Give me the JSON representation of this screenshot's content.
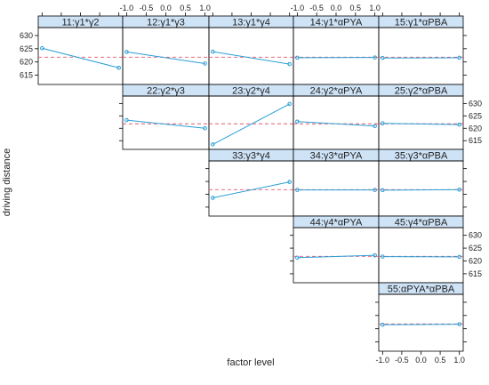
{
  "chart_data": {
    "type": "line",
    "ylabel": "driving distance",
    "xlabel": "factor level",
    "x_ticks": [
      "-1.0",
      "-0.5",
      "0.0",
      "0.5",
      "1.0"
    ],
    "y_ticks": [
      "615",
      "620",
      "625",
      "630"
    ],
    "xlim": [
      -1.1,
      1.1
    ],
    "ylim": [
      611.5,
      633
    ],
    "reference_y": 621.8,
    "colors": {
      "line": "#2a9fd6",
      "reference": "#e8586f",
      "strip": "#cfe3f7",
      "frame": "#000000"
    },
    "panels": [
      {
        "label": "11:γ1*γ2",
        "row": 0,
        "col": 0,
        "y": [
          625.2,
          617.8
        ]
      },
      {
        "label": "12:γ1*γ3",
        "row": 0,
        "col": 1,
        "y": [
          623.8,
          619.4
        ]
      },
      {
        "label": "13:γ1*γ4",
        "row": 0,
        "col": 2,
        "y": [
          623.9,
          619.2
        ]
      },
      {
        "label": "14:γ1*αPYA",
        "row": 0,
        "col": 3,
        "y": [
          621.6,
          621.7
        ]
      },
      {
        "label": "15:γ1*αPBA",
        "row": 0,
        "col": 4,
        "y": [
          621.5,
          621.6
        ]
      },
      {
        "label": "22:γ2*γ3",
        "row": 1,
        "col": 1,
        "y": [
          623.3,
          620.0
        ]
      },
      {
        "label": "23:γ2*γ4",
        "row": 1,
        "col": 2,
        "y": [
          613.5,
          629.8
        ]
      },
      {
        "label": "24:γ2*αPYA",
        "row": 1,
        "col": 3,
        "y": [
          622.7,
          620.9
        ]
      },
      {
        "label": "25:γ2*αPBA",
        "row": 1,
        "col": 4,
        "y": [
          622.0,
          621.5
        ]
      },
      {
        "label": "33:γ3*γ4",
        "row": 2,
        "col": 2,
        "y": [
          618.6,
          624.8
        ]
      },
      {
        "label": "34:γ3*αPYA",
        "row": 2,
        "col": 3,
        "y": [
          621.7,
          621.7
        ]
      },
      {
        "label": "35:γ3*αPBA",
        "row": 2,
        "col": 4,
        "y": [
          621.6,
          621.8
        ]
      },
      {
        "label": "44:γ4*αPYA",
        "row": 3,
        "col": 3,
        "y": [
          621.3,
          622.2
        ]
      },
      {
        "label": "45:γ4*αPBA",
        "row": 3,
        "col": 4,
        "y": [
          621.7,
          621.6
        ]
      },
      {
        "label": "55:αPYA*αPBA",
        "row": 4,
        "col": 4,
        "y": [
          621.5,
          621.7
        ]
      }
    ]
  }
}
